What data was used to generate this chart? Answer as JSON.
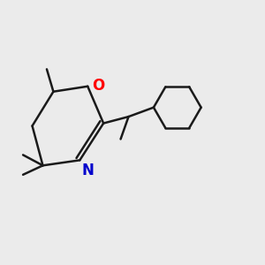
{
  "bg_color": "#ebebeb",
  "bond_color": "#1a1a1a",
  "O_color": "#ff0000",
  "N_color": "#0000cc",
  "bond_width": 1.8,
  "font_size": 12
}
